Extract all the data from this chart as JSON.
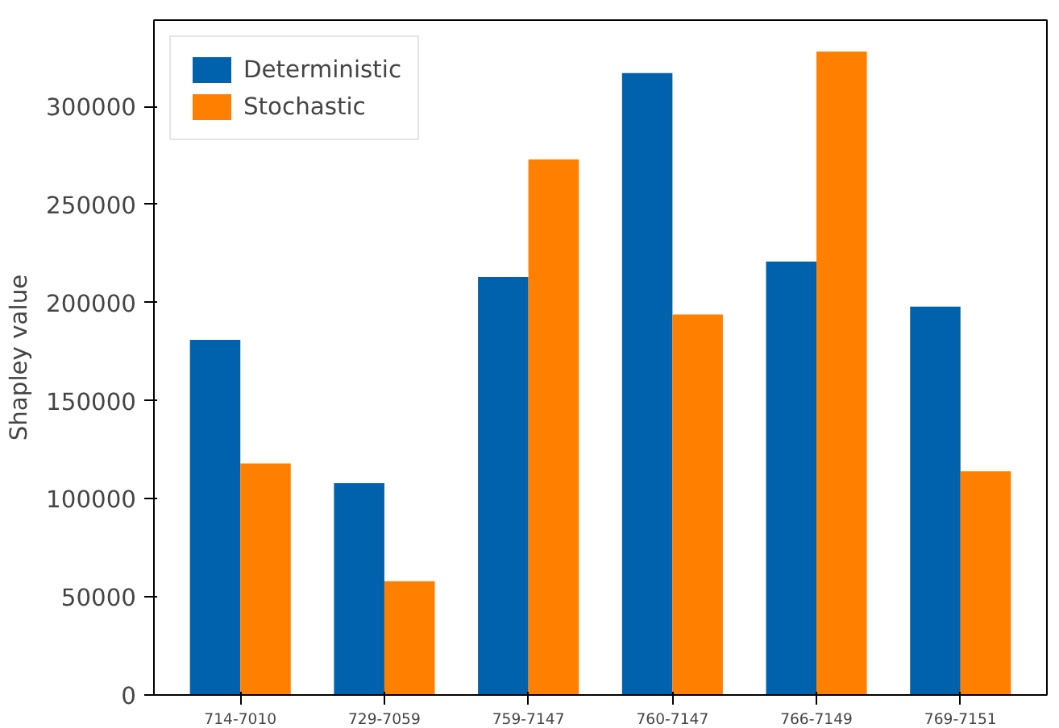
{
  "chart_data": {
    "type": "bar",
    "ylabel": "Shapley value",
    "categories": [
      "714-7010",
      "729-7059",
      "759-7147",
      "760-7147",
      "766-7149",
      "769-7151"
    ],
    "series": [
      {
        "name": "Deterministic",
        "color": "#0062ac",
        "values": [
          181000,
          108000,
          213000,
          317000,
          221000,
          198000
        ]
      },
      {
        "name": "Stochastic",
        "color": "#ff7f00",
        "values": [
          118000,
          58000,
          273000,
          194000,
          328000,
          114000
        ]
      }
    ],
    "ylim": [
      0,
      344000
    ],
    "yticks": [
      0,
      50000,
      100000,
      150000,
      200000,
      250000,
      300000
    ],
    "grid": false,
    "legend": "top left"
  }
}
